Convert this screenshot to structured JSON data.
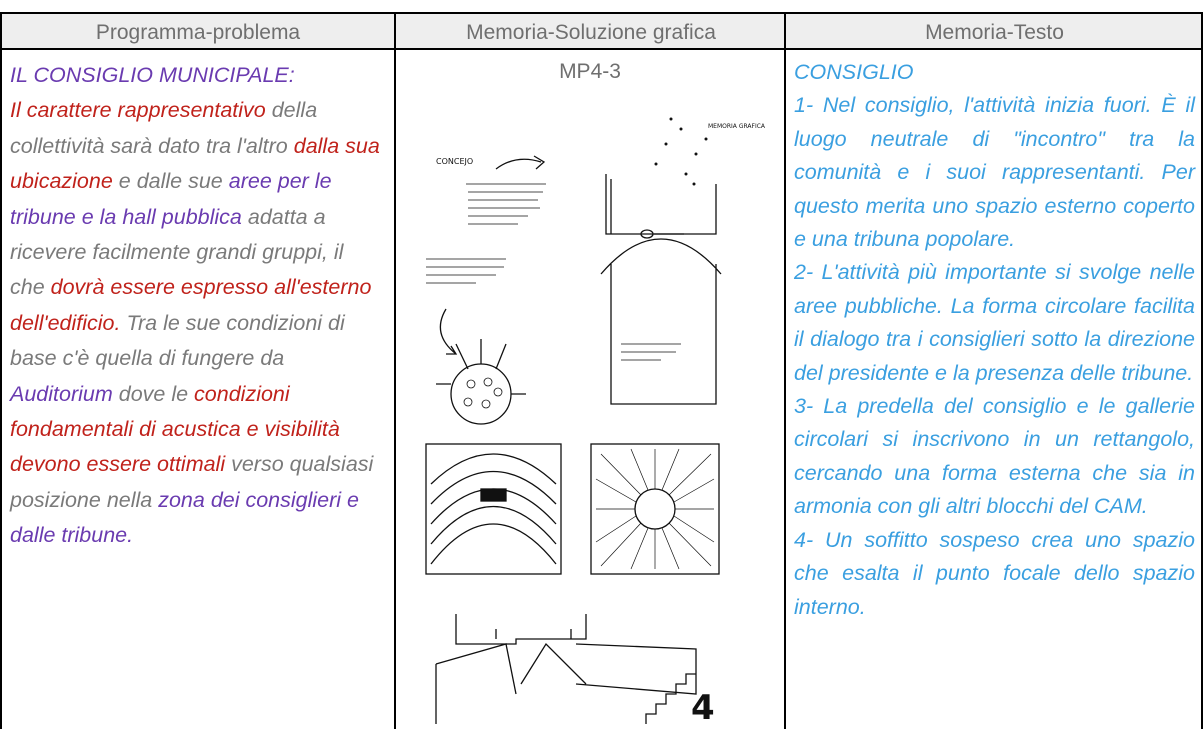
{
  "table": {
    "header": [
      "Programma-problema",
      "Memoria-Soluzione grafica",
      "Memoria-Testo"
    ],
    "rows": [
      [
        {
          "title": "IL CONSIGLIO MUNICIPALE:",
          "title_color": "#6a3bb0",
          "segments": [
            {
              "text": "Il carattere rappresentativo",
              "color": "#c0221b"
            },
            {
              "text": " della collettività sarà dato tra l'altro ",
              "color": "#7a7a7a"
            },
            {
              "text": "dalla sua ubicazione",
              "color": "#c0221b"
            },
            {
              "text": " e dalle sue ",
              "color": "#7a7a7a"
            },
            {
              "text": "aree per le tribune e la hall pubblica",
              "color": "#6a3bb0"
            },
            {
              "text": " adatta a ricevere facilmente grandi gruppi, il che ",
              "color": "#7a7a7a"
            },
            {
              "text": "dovrà essere espresso all'esterno dell'edificio.",
              "color": "#c0221b"
            },
            {
              "text": " Tra le sue condizioni di base c'è quella di fungere da ",
              "color": "#7a7a7a"
            },
            {
              "text": "Auditorium",
              "color": "#6a3bb0"
            },
            {
              "text": " dove le ",
              "color": "#7a7a7a"
            },
            {
              "text": "condizioni fondamentali di acustica e visibilità devono essere ottimali",
              "color": "#c0221b"
            },
            {
              "text": " verso qualsiasi posizione nella ",
              "color": "#7a7a7a"
            },
            {
              "text": "zona dei consiglieri e dalle tribune.",
              "color": "#6a3bb0"
            }
          ]
        },
        {
          "title": "MP4-3",
          "sketch_labels": [
            "CONCEJO",
            "MEMORIA GRAFICA",
            "4"
          ]
        },
        {
          "paragraphs": [
            "CONSIGLIO",
            "1- Nel consiglio, l'attività inizia fuori. È il luogo neutrale di \"incontro\" tra la comunità e i suoi rappresentanti. Per questo merita uno spazio esterno coperto e una tribuna popolare.",
            "2- L'attività più importante si svolge nelle aree pubbliche. La forma circolare facilita il dialogo tra i consiglieri sotto la direzione del presidente e la presenza delle tribune.",
            "3- La predella del consiglio e le gallerie circolari si inscrivono in un rettangolo, cercando una forma esterna che sia in armonia con gli altri blocchi del CAM.",
            "4- Un soffitto sospeso crea uno spazio che esalta il punto focale dello spazio interno."
          ],
          "color": "#3a9fe0"
        }
      ]
    ]
  }
}
